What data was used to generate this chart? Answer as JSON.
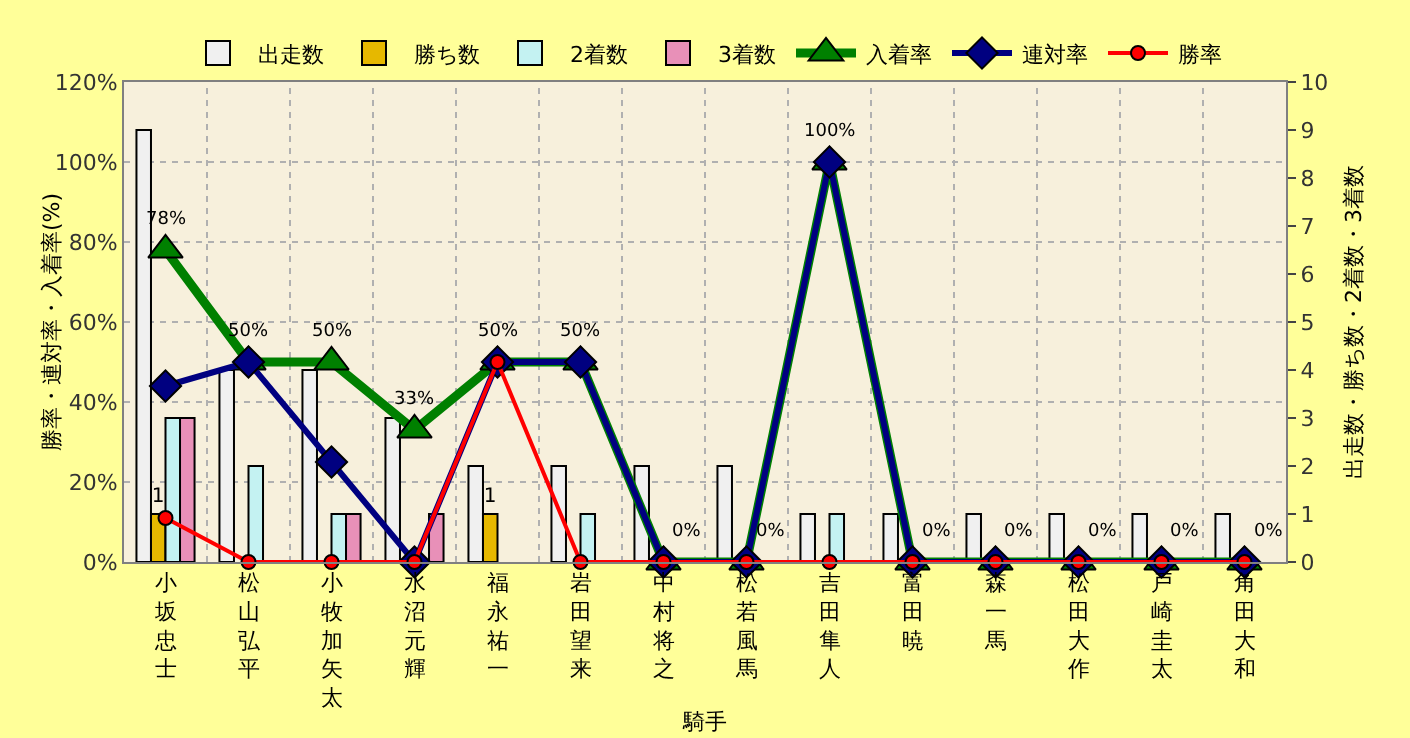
{
  "chart_data": {
    "type": "bar",
    "xlabel": "騎手",
    "ylabel": "勝率・連対率・入着率(%)",
    "y2label": "出走数・勝ち数・2着数・3着数",
    "categories": [
      "小坂忠士",
      "松山弘平",
      "小牧加矢太",
      "水沼元輝",
      "福永祐一",
      "岩田望来",
      "中村将之",
      "松若風馬",
      "吉田隼人",
      "富田暁",
      "森一馬",
      "松田大作",
      "戸崎圭太",
      "角田大和"
    ],
    "series": [
      {
        "name": "出走数",
        "axis": "y2",
        "color": "#f0f0f0",
        "values": [
          9,
          4,
          4,
          3,
          2,
          2,
          2,
          2,
          1,
          1,
          1,
          1,
          1,
          1
        ]
      },
      {
        "name": "勝ち数",
        "axis": "y2",
        "color": "#e6b800",
        "values": [
          1,
          0,
          0,
          0,
          1,
          0,
          0,
          0,
          0,
          0,
          0,
          0,
          0,
          0
        ],
        "value_labels": [
          "1",
          null,
          null,
          null,
          "1",
          null,
          null,
          null,
          null,
          null,
          null,
          null,
          null,
          null
        ]
      },
      {
        "name": "2着数",
        "axis": "y2",
        "color": "#c4f2f2",
        "values": [
          3,
          2,
          1,
          0,
          0,
          1,
          0,
          0,
          1,
          0,
          0,
          0,
          0,
          0
        ]
      },
      {
        "name": "3着数",
        "axis": "y2",
        "color": "#e890b8",
        "values": [
          3,
          0,
          1,
          1,
          0,
          0,
          0,
          0,
          0,
          0,
          0,
          0,
          0,
          0
        ]
      },
      {
        "name": "入着率",
        "type": "line",
        "color": "#008000",
        "marker": "triangle",
        "values": [
          78,
          50,
          50,
          33,
          50,
          50,
          0,
          0,
          100,
          0,
          0,
          0,
          0,
          0
        ],
        "value_labels": [
          "78%",
          "50%",
          "50%",
          "33%",
          "50%",
          "50%",
          "0%",
          "0%",
          "100%",
          "0%",
          "0%",
          "0%",
          "0%",
          "0%"
        ]
      },
      {
        "name": "連対率",
        "type": "line",
        "color": "#000080",
        "marker": "diamond",
        "values": [
          44,
          50,
          25,
          0,
          50,
          50,
          0,
          0,
          100,
          0,
          0,
          0,
          0,
          0
        ]
      },
      {
        "name": "勝率",
        "type": "line",
        "color": "#ff0000",
        "marker": "circle",
        "values": [
          11,
          0,
          0,
          0,
          50,
          0,
          0,
          0,
          0,
          0,
          0,
          0,
          0,
          0
        ]
      }
    ],
    "ylim": [
      0,
      120
    ],
    "yticks": [
      {
        "value": 0,
        "label": "0%"
      },
      {
        "value": 20,
        "label": "20%"
      },
      {
        "value": 40,
        "label": "40%"
      },
      {
        "value": 60,
        "label": "60%"
      },
      {
        "value": 80,
        "label": "80%"
      },
      {
        "value": 100,
        "label": "100%"
      },
      {
        "value": 120,
        "label": "120%"
      }
    ],
    "y2lim": [
      0,
      10
    ],
    "y2ticks": [
      0,
      1,
      2,
      3,
      4,
      5,
      6,
      7,
      8,
      9,
      10
    ],
    "grid": true,
    "legend": "top"
  }
}
